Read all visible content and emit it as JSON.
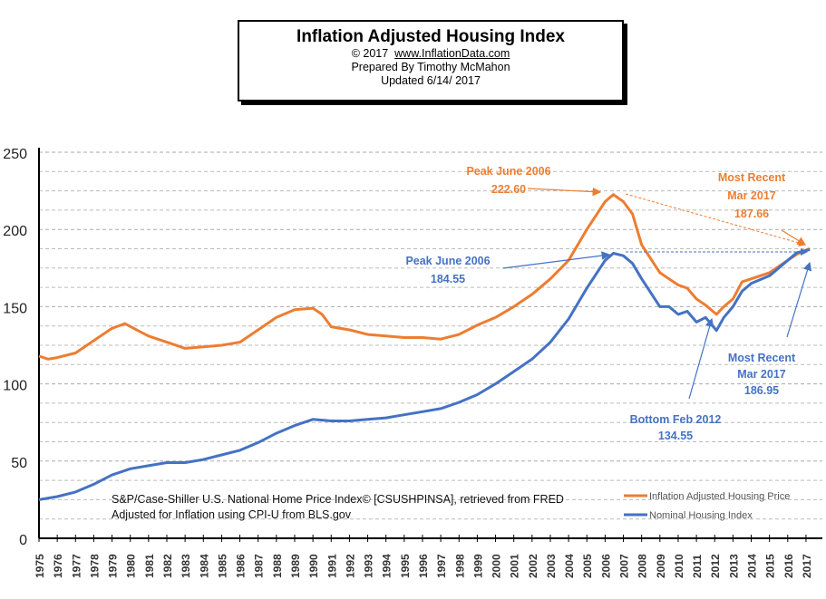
{
  "header": {
    "title": "Inflation Adjusted Housing Index",
    "copyright": "© 2017",
    "website": "www.InflationData.com",
    "prepared": "Prepared  By Timothy McMahon",
    "updated": "Updated   6/14/ 2017"
  },
  "colors": {
    "inflation": "#ED7D31",
    "nominal": "#4472C4",
    "annotation_orange": "#ED7D31",
    "annotation_blue": "#4472C4"
  },
  "chart_data": {
    "type": "line",
    "title": "Inflation Adjusted Housing Index",
    "xlim": [
      1975,
      2017.4
    ],
    "ylim": [
      0,
      250
    ],
    "yticks": [
      0,
      50,
      100,
      150,
      200,
      250
    ],
    "xticks": [
      "1975",
      "1976",
      "1977",
      "1978",
      "1979",
      "1980",
      "1981",
      "1982",
      "1983",
      "1984",
      "1985",
      "1986",
      "1987",
      "1988",
      "1989",
      "1990",
      "1991",
      "1992",
      "1993",
      "1994",
      "1995",
      "1996",
      "1997",
      "1998",
      "1999",
      "2000",
      "2001",
      "2002",
      "2003",
      "2004",
      "2005",
      "2006",
      "2007",
      "2008",
      "2009",
      "2010",
      "2011",
      "2012",
      "2013",
      "2014",
      "2015",
      "2016",
      "2017"
    ],
    "grid": true,
    "legend": "bottom-right",
    "series": [
      {
        "name": "Inflation Adjusted Housing Price",
        "color": "#ED7D31",
        "x": [
          1975,
          1975.5,
          1976,
          1977,
          1978,
          1979,
          1979.7,
          1980.5,
          1981,
          1982,
          1983,
          1984,
          1985,
          1986,
          1987,
          1988,
          1989,
          1990,
          1990.5,
          1991,
          1992,
          1993,
          1994,
          1995,
          1996,
          1997,
          1998,
          1999,
          2000,
          2001,
          2002,
          2003,
          2004,
          2005,
          2006,
          2006.45,
          2007,
          2007.5,
          2008,
          2009,
          2009.5,
          2010,
          2010.5,
          2011,
          2011.5,
          2012.1,
          2012.5,
          2013,
          2013.5,
          2014,
          2015,
          2016,
          2016.5,
          2017.2
        ],
        "y": [
          118,
          116,
          117,
          120,
          128,
          136,
          139,
          134,
          131,
          127,
          123,
          124,
          125,
          127,
          135,
          143,
          148,
          149,
          145,
          137,
          135,
          132,
          131,
          130,
          130,
          129,
          132,
          138,
          143,
          150,
          158,
          168,
          180,
          200,
          218,
          222.6,
          218,
          210,
          190,
          172,
          168,
          164,
          162,
          155,
          151,
          145,
          150,
          155,
          166,
          168,
          172,
          180,
          184,
          187.66
        ]
      },
      {
        "name": "Nominal Housing Index",
        "color": "#4472C4",
        "x": [
          1975,
          1976,
          1977,
          1978,
          1979,
          1980,
          1981,
          1982,
          1983,
          1984,
          1985,
          1986,
          1987,
          1988,
          1989,
          1990,
          1991,
          1992,
          1993,
          1994,
          1995,
          1996,
          1997,
          1998,
          1999,
          2000,
          2001,
          2002,
          2003,
          2004,
          2005,
          2006,
          2006.45,
          2007,
          2007.5,
          2008,
          2009,
          2009.5,
          2010,
          2010.5,
          2011,
          2011.5,
          2012.1,
          2012.5,
          2013,
          2013.5,
          2014,
          2015,
          2016,
          2016.5,
          2017.2
        ],
        "y": [
          25,
          27,
          30,
          35,
          41,
          45,
          47,
          49,
          49,
          51,
          54,
          57,
          62,
          68,
          73,
          77,
          76,
          76,
          77,
          78,
          80,
          82,
          84,
          88,
          93,
          100,
          108,
          116,
          127,
          142,
          162,
          180,
          184.55,
          183,
          178,
          168,
          150,
          150,
          145,
          147,
          140,
          143,
          134.55,
          143,
          150,
          160,
          165,
          170,
          180,
          185,
          186.95
        ]
      }
    ],
    "annotations": [
      {
        "text": [
          "Peak June 2006",
          "222.60"
        ],
        "color": "#ED7D31"
      },
      {
        "text": [
          "Most Recent",
          "Mar 2017",
          "187.66"
        ],
        "color": "#ED7D31"
      },
      {
        "text": [
          "Peak June 2006",
          "184.55"
        ],
        "color": "#4472C4"
      },
      {
        "text": [
          "Bottom Feb 2012",
          "134.55"
        ],
        "color": "#4472C4"
      },
      {
        "text": [
          "Most Recent",
          "Mar 2017",
          "186.95"
        ],
        "color": "#4472C4"
      }
    ],
    "source_note": [
      "S&P/Case-Shiller U.S. National Home Price Index© [CSUSHPINSA], retrieved from FRED",
      "Adjusted for Inflation using CPI-U from BLS.gov"
    ]
  }
}
